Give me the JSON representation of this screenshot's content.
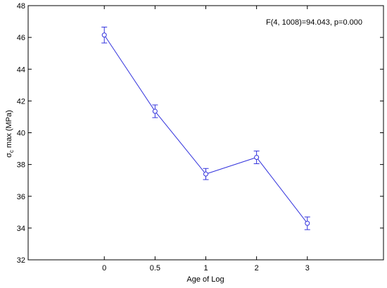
{
  "chart_data": {
    "type": "line",
    "title": "",
    "xlabel": "Age of Log",
    "ylabel_main": "σ",
    "ylabel_sub": "c",
    "ylabel_rest": " max (MPa)",
    "annotation": "F(4, 1008)=94.043, p=0.000",
    "categories": [
      "0",
      "0.5",
      "1",
      "2",
      "3"
    ],
    "series": [
      {
        "values": [
          46.15,
          41.35,
          37.4,
          38.45,
          34.3
        ],
        "err_low": [
          45.65,
          40.95,
          37.05,
          38.05,
          33.9
        ],
        "err_high": [
          46.65,
          41.75,
          37.75,
          38.85,
          34.7
        ]
      }
    ],
    "ylim": [
      32,
      48
    ],
    "yticks": [
      "32",
      "34",
      "36",
      "38",
      "40",
      "42",
      "44",
      "46",
      "48"
    ],
    "grid": false,
    "line_color": "#3333dd"
  }
}
